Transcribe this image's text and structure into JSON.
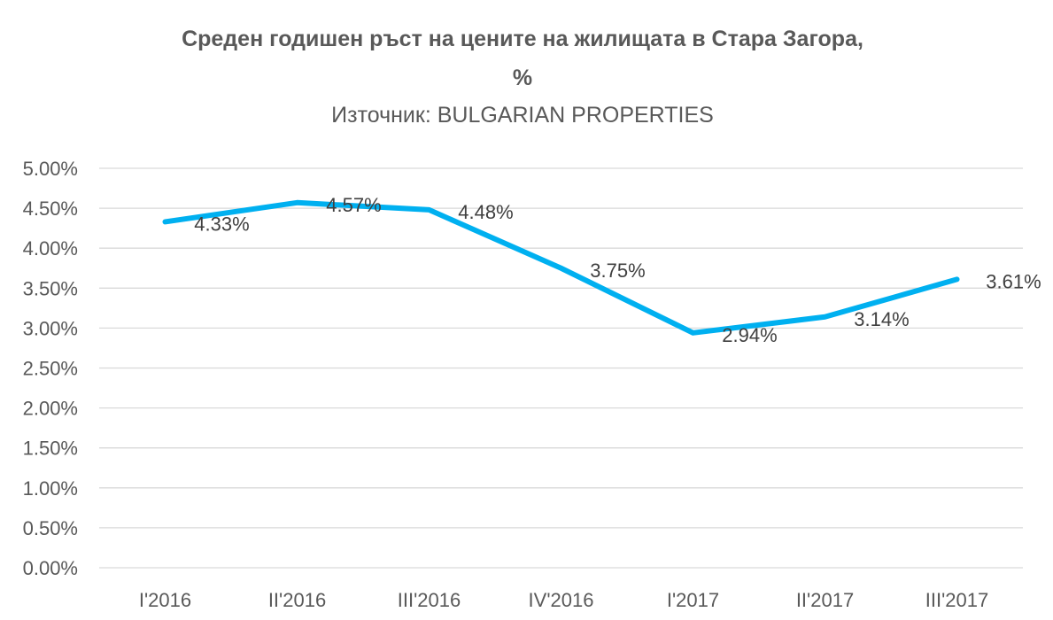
{
  "chart_data": {
    "type": "line",
    "title_line1": "Среден годишен ръст на цените на жилищата в Стара Загора,",
    "title_line2": "%",
    "subtitle": "Източник: BULGARIAN PROPERTIES",
    "categories": [
      "I'2016",
      "II'2016",
      "III'2016",
      "IV'2016",
      "I'2017",
      "II'2017",
      "III'2017"
    ],
    "values": [
      4.33,
      4.57,
      4.48,
      3.75,
      2.94,
      3.14,
      3.61
    ],
    "data_labels": [
      "4.33%",
      "4.57%",
      "4.48%",
      "3.75%",
      "2.94%",
      "3.14%",
      "3.61%"
    ],
    "y_ticks": [
      "0.00%",
      "0.50%",
      "1.00%",
      "1.50%",
      "2.00%",
      "2.50%",
      "3.00%",
      "3.50%",
      "4.00%",
      "4.50%",
      "5.00%"
    ],
    "ylim": [
      0,
      5
    ],
    "grid": true,
    "line_color": "#00B0F0",
    "xlabel": "",
    "ylabel": ""
  }
}
